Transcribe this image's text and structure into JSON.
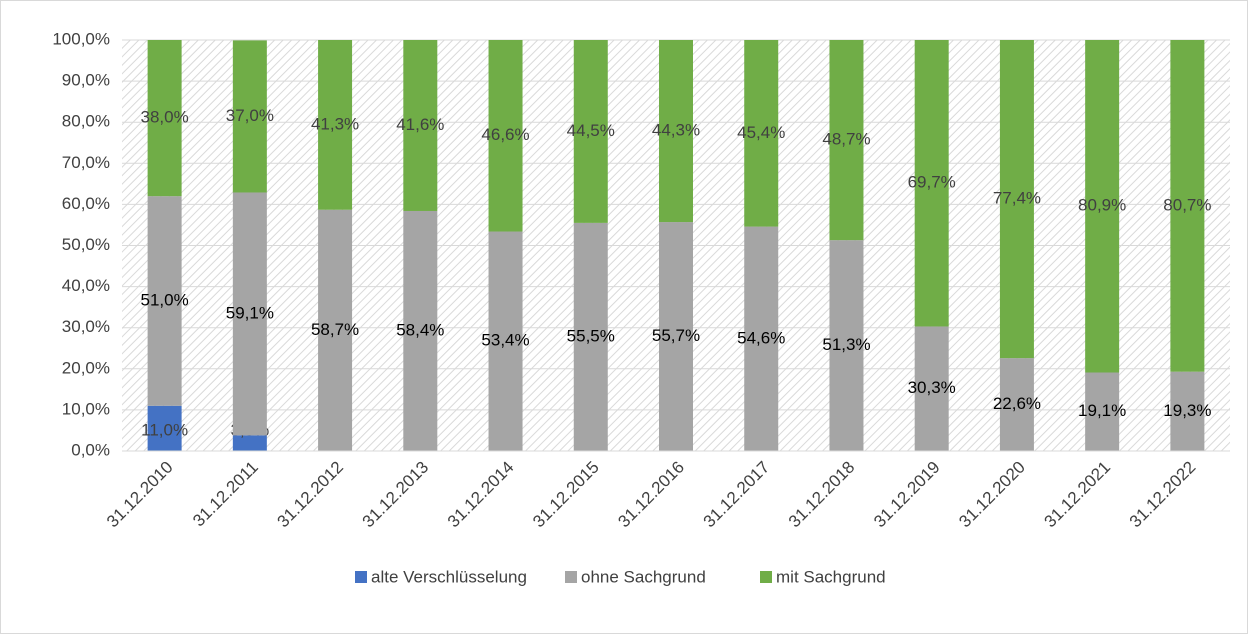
{
  "chart_data": {
    "type": "stacked_bar",
    "categories": [
      "31.12.2010",
      "31.12.2011",
      "31.12.2012",
      "31.12.2013",
      "31.12.2014",
      "31.12.2015",
      "31.12.2016",
      "31.12.2017",
      "31.12.2018",
      "31.12.2019",
      "31.12.2020",
      "31.12.2021",
      "31.12.2022"
    ],
    "series": [
      {
        "name": "alte Verschlüsselung",
        "color": "#4472c4",
        "values": [
          11.0,
          3.8,
          null,
          null,
          null,
          null,
          null,
          null,
          null,
          null,
          null,
          null,
          null
        ],
        "value_labels": [
          "11,0%",
          "3,8%",
          null,
          null,
          null,
          null,
          null,
          null,
          null,
          null,
          null,
          null,
          null
        ]
      },
      {
        "name": "ohne Sachgrund",
        "color": "#a5a5a5",
        "values": [
          51.0,
          59.1,
          58.7,
          58.4,
          53.4,
          55.5,
          55.7,
          54.6,
          51.3,
          30.3,
          22.6,
          19.1,
          19.3
        ],
        "value_labels": [
          "51,0%",
          "59,1%",
          "58,7%",
          "58,4%",
          "53,4%",
          "55,5%",
          "55,7%",
          "54,6%",
          "51,3%",
          "30,3%",
          "22,6%",
          "19,1%",
          "19,3%"
        ]
      },
      {
        "name": "mit Sachgrund",
        "color": "#70ad47",
        "values": [
          38.0,
          37.0,
          41.3,
          41.6,
          46.6,
          44.5,
          44.3,
          45.4,
          48.7,
          69.7,
          77.4,
          80.9,
          80.7
        ],
        "value_labels": [
          "38,0%",
          "37,0%",
          "41,3%",
          "41,6%",
          "46,6%",
          "44,5%",
          "44,3%",
          "45,4%",
          "48,7%",
          "69,7%",
          "77,4%",
          "80,9%",
          "80,7%"
        ]
      }
    ],
    "ylim": [
      0,
      100
    ],
    "yticks": [
      {
        "value": 0,
        "label": "0,0%"
      },
      {
        "value": 10,
        "label": "10,0%"
      },
      {
        "value": 20,
        "label": "20,0%"
      },
      {
        "value": 30,
        "label": "30,0%"
      },
      {
        "value": 40,
        "label": "40,0%"
      },
      {
        "value": 50,
        "label": "50,0%"
      },
      {
        "value": 60,
        "label": "60,0%"
      },
      {
        "value": 70,
        "label": "70,0%"
      },
      {
        "value": 80,
        "label": "80,0%"
      },
      {
        "value": 90,
        "label": "90,0%"
      },
      {
        "value": 100,
        "label": "100,0%"
      }
    ],
    "grid": true,
    "legend": "bottom"
  }
}
